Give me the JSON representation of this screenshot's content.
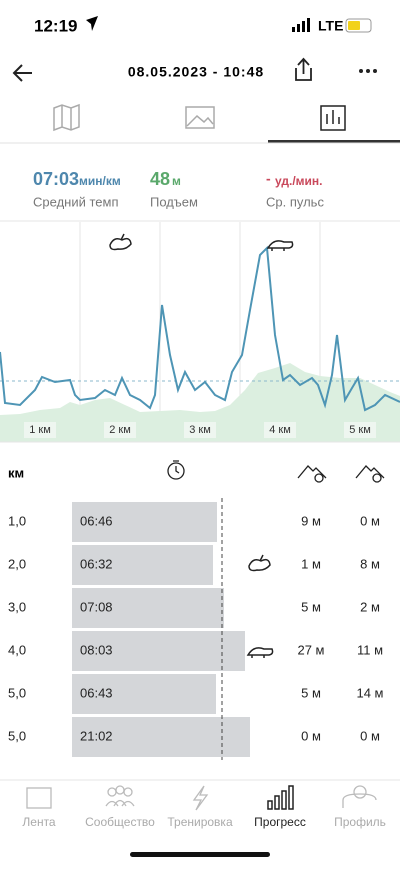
{
  "status_bar": {
    "time": "12:19",
    "network": "LTE"
  },
  "header": {
    "title": "08.05.2023 - 10:48"
  },
  "summary": [
    {
      "value": "07:03",
      "unit": "мин/км",
      "label": "Средний темп"
    },
    {
      "value": "48",
      "unit": "м",
      "label": "Подъем"
    },
    {
      "value": "-",
      "unit": "уд./мин.",
      "label": "Ср. пульс"
    }
  ],
  "chart": {
    "x_labels": [
      "1 км",
      "2 км",
      "3 км",
      "4 км",
      "5 км"
    ]
  },
  "table": {
    "header": "км",
    "rows": [
      [
        "1,0",
        "06:46",
        "9 м",
        "0 м"
      ],
      [
        "2,0",
        "06:32",
        "1 м",
        "8 м"
      ],
      [
        "3,0",
        "07:08",
        "5 м",
        "2 м"
      ],
      [
        "4,0",
        "08:03",
        "27 м",
        "11 м"
      ],
      [
        "5,0",
        "06:43",
        "5 м",
        "14 м"
      ],
      [
        "5,0",
        "21:02",
        "0 м",
        "0 м"
      ]
    ]
  },
  "nav": [
    "Лента",
    "Сообщество",
    "Тренировка",
    "Прогресс",
    "Профиль"
  ]
}
